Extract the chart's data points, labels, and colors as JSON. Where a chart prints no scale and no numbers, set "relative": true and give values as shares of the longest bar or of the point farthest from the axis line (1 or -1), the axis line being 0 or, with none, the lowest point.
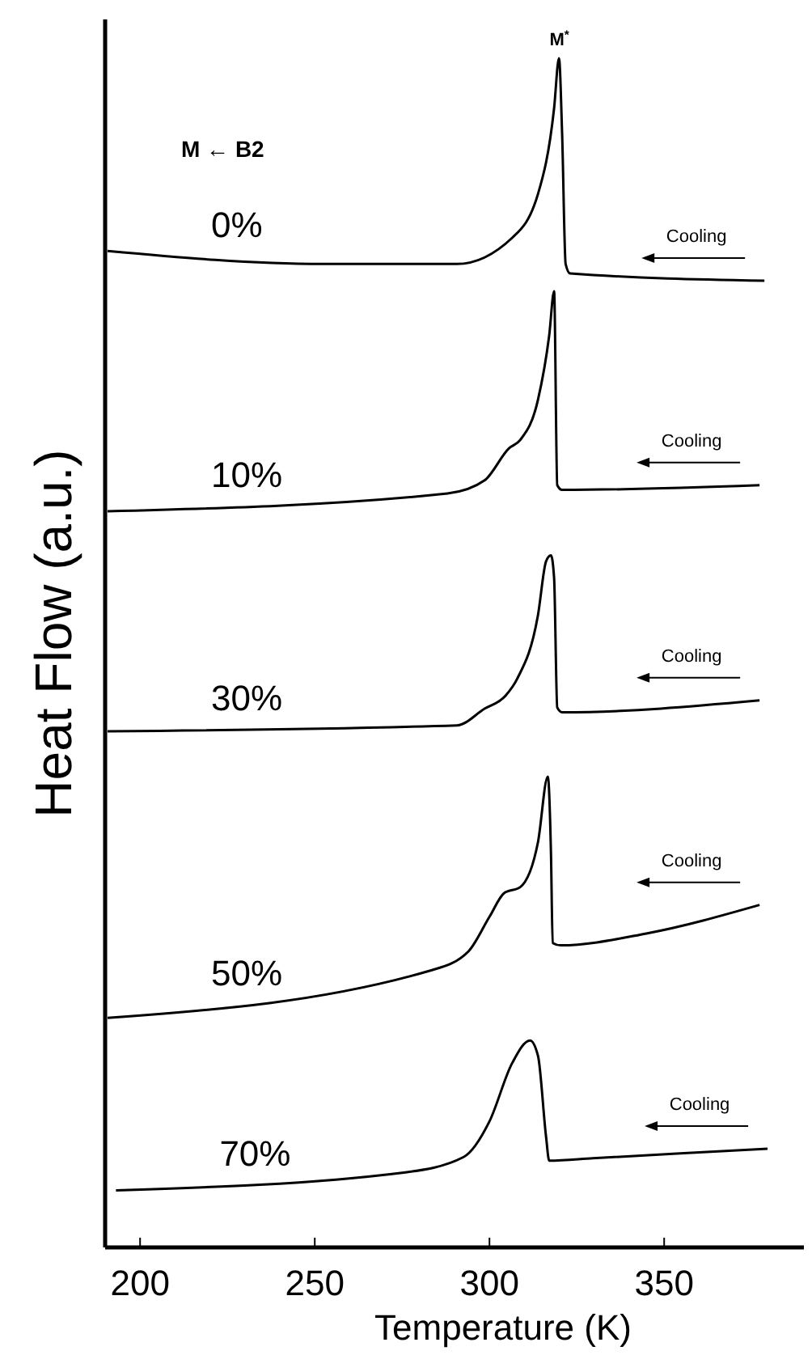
{
  "chart_data": {
    "type": "line",
    "relative": true,
    "xlabel": "Temperature (K)",
    "ylabel": "Heat Flow (a.u.)",
    "xlim": [
      190,
      390
    ],
    "xticks": [
      200,
      250,
      300,
      350
    ],
    "series": [
      {
        "name": "0%",
        "color": "#000000",
        "x": [
          190.7,
          252.3,
          290.7,
          306.5,
          313.9,
          318.5,
          319.9,
          320.8,
          321.8,
          323.1,
          378.7
        ],
        "values": [
          0.838,
          0.827,
          0.827,
          0.849,
          0.886,
          0.958,
          1,
          0.936,
          0.827,
          0.819,
          0.813
        ]
      },
      {
        "name": "10%",
        "color": "#000000",
        "x": [
          190.7,
          288,
          298.6,
          305.6,
          308.8,
          313.9,
          317.1,
          318.5,
          319.4,
          320.8,
          377.3
        ],
        "values": [
          0.619,
          0.634,
          0.645,
          0.672,
          0.679,
          0.713,
          0.767,
          0.804,
          0.641,
          0.637,
          0.641
        ]
      },
      {
        "name": "30%",
        "color": "#000000",
        "x": [
          190.7,
          290.7,
          298.6,
          304.6,
          307.9,
          313.9,
          316.2,
          317.6,
          318.5,
          319.4,
          320.8,
          377.3
        ],
        "values": [
          0.434,
          0.439,
          0.453,
          0.464,
          0.478,
          0.532,
          0.577,
          0.582,
          0.563,
          0.454,
          0.45,
          0.46
        ]
      },
      {
        "name": "50%",
        "color": "#000000",
        "x": [
          190.7,
          283.3,
          294,
          300,
          304.2,
          308.8,
          313.9,
          316.7,
          317.6,
          318.1,
          320.4,
          344.9,
          377.3
        ],
        "values": [
          0.193,
          0.233,
          0.249,
          0.278,
          0.298,
          0.303,
          0.341,
          0.396,
          0.332,
          0.256,
          0.254,
          0.264,
          0.288
        ]
      },
      {
        "name": "70%",
        "color": "#000000",
        "x": [
          193.1,
          275.5,
          292.6,
          300,
          306.5,
          311.6,
          313.9,
          316.2,
          317.1,
          329.6,
          379.6
        ],
        "values": [
          0.048,
          0.063,
          0.076,
          0.106,
          0.155,
          0.174,
          0.161,
          0.093,
          0.073,
          0.075,
          0.083
        ]
      }
    ],
    "annotations": [
      {
        "text": "M$^{*}$",
        "x": 320,
        "y": 1
      },
      "M ← B2",
      "Cooling",
      "Cooling",
      "Cooling",
      "Cooling",
      "Cooling"
    ]
  }
}
